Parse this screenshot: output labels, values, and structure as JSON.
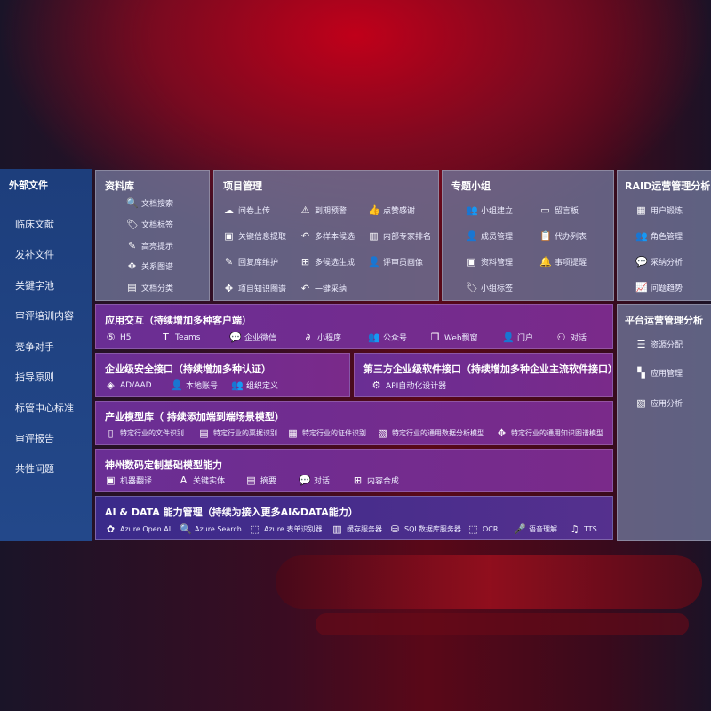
{
  "sidebar": {
    "title": "外部文件",
    "items": [
      "临床文献",
      "发补文件",
      "关键字池",
      "审评培训内容",
      "竞争对手",
      "指导原则",
      "标管中心标准",
      "审评报告",
      "共性问题"
    ]
  },
  "library": {
    "title": "资料库",
    "items": [
      {
        "icon": "doc-search-icon",
        "label": "文档搜索"
      },
      {
        "icon": "tag-icon",
        "label": "文档标签"
      },
      {
        "icon": "pen-icon",
        "label": "高亮提示"
      },
      {
        "icon": "graph-icon",
        "label": "关系图谱"
      },
      {
        "icon": "doc-classify-icon",
        "label": "文档分类"
      }
    ]
  },
  "project": {
    "title": "项目管理",
    "items": [
      {
        "icon": "cloud-upload-icon",
        "label": "问卷上传"
      },
      {
        "icon": "alarm-icon",
        "label": "到期预警"
      },
      {
        "icon": "thumbs-up-icon",
        "label": "点赞感谢"
      },
      {
        "icon": "extract-icon",
        "label": "关键信息提取"
      },
      {
        "icon": "reply-icon",
        "label": "多样本候选"
      },
      {
        "icon": "ranking-icon",
        "label": "内部专家排名"
      },
      {
        "icon": "edit-icon",
        "label": "回复库维护"
      },
      {
        "icon": "puzzle-icon",
        "label": "多候选生成"
      },
      {
        "icon": "user-icon",
        "label": "评审员画像"
      },
      {
        "icon": "graph-icon",
        "label": "项目知识图谱"
      },
      {
        "icon": "reply-icon",
        "label": "一键采纳"
      }
    ]
  },
  "group": {
    "title": "专题小组",
    "items": [
      {
        "icon": "group-icon",
        "label": "小组建立"
      },
      {
        "icon": "bbs-icon",
        "label": "留言板"
      },
      {
        "icon": "add-user-icon",
        "label": "成员管理"
      },
      {
        "icon": "clipboard-icon",
        "label": "代办列表"
      },
      {
        "icon": "folder-icon",
        "label": "资料管理"
      },
      {
        "icon": "bell-icon",
        "label": "事项提醒"
      },
      {
        "icon": "tag-icon",
        "label": "小组标签"
      }
    ]
  },
  "raid": {
    "title": "RAID运营管理分析",
    "items": [
      {
        "icon": "id-card-icon",
        "label": "用户锻炼"
      },
      {
        "icon": "group-icon",
        "label": "角色管理"
      },
      {
        "icon": "qa-icon",
        "label": "采纳分析"
      },
      {
        "icon": "trend-icon",
        "label": "问题趋势"
      }
    ]
  },
  "platform": {
    "title": "平台运营管理分析",
    "items": [
      {
        "icon": "list-icon",
        "label": "资源分配"
      },
      {
        "icon": "apps-icon",
        "label": "应用管理"
      },
      {
        "icon": "chart-icon",
        "label": "应用分析"
      }
    ]
  },
  "interaction": {
    "title": "应用交互（持续增加多种客户端）",
    "items": [
      {
        "icon": "html5-icon",
        "label": "H5"
      },
      {
        "icon": "teams-icon",
        "label": "Teams"
      },
      {
        "icon": "wechat-icon",
        "label": "企业微信"
      },
      {
        "icon": "miniprogram-icon",
        "label": "小程序"
      },
      {
        "icon": "group-icon",
        "label": "公众号"
      },
      {
        "icon": "window-icon",
        "label": "Web飘窗"
      },
      {
        "icon": "portal-icon",
        "label": "门户"
      },
      {
        "icon": "chat-icon",
        "label": "对话"
      }
    ]
  },
  "security": {
    "title": "企业级安全接口（持续增加多种认证）",
    "items": [
      {
        "icon": "ad-icon",
        "label": "AD/AAD"
      },
      {
        "icon": "user-lock-icon",
        "label": "本地账号"
      },
      {
        "icon": "org-icon",
        "label": "组织定义"
      }
    ]
  },
  "thirdparty": {
    "title": "第三方企业级软件接口（持续增加多种企业主流软件接口）",
    "items": [
      {
        "icon": "gear-icon",
        "label": "API自动化设计器"
      }
    ]
  },
  "industry": {
    "title": "产业模型库（ 持续添加端到端场景模型）",
    "items": [
      {
        "icon": "doc-icon",
        "label": "特定行业的文件识别"
      },
      {
        "icon": "receipt-icon",
        "label": "特定行业的票据识别"
      },
      {
        "icon": "id-card-icon",
        "label": "特定行业的证件识别"
      },
      {
        "icon": "chart-icon",
        "label": "特定行业的通用数据分析模型"
      },
      {
        "icon": "graph-icon",
        "label": "特定行业的通用知识图谱模型"
      }
    ]
  },
  "base": {
    "title": "神州数码定制基础模型能力",
    "items": [
      {
        "icon": "translate-icon",
        "label": "机器翻译"
      },
      {
        "icon": "entity-icon",
        "label": "关键实体"
      },
      {
        "icon": "summary-icon",
        "label": "摘要"
      },
      {
        "icon": "chat-icon",
        "label": "对话"
      },
      {
        "icon": "puzzle-icon",
        "label": "内容合成"
      }
    ]
  },
  "aidata": {
    "title": "AI & DATA 能力管理（持续为接入更多AI&DATA能力）",
    "items": [
      {
        "icon": "openai-icon",
        "label": "Azure Open AI"
      },
      {
        "icon": "search-icon",
        "label": "Azure Search"
      },
      {
        "icon": "form-icon",
        "label": "Azure 表单识别器"
      },
      {
        "icon": "cache-icon",
        "label": "缓存服务器"
      },
      {
        "icon": "database-icon",
        "label": "SQL数据库服务器"
      },
      {
        "icon": "ocr-icon",
        "label": "OCR"
      },
      {
        "icon": "mic-icon",
        "label": "语音理解"
      },
      {
        "icon": "tts-icon",
        "label": "TTS"
      }
    ]
  }
}
